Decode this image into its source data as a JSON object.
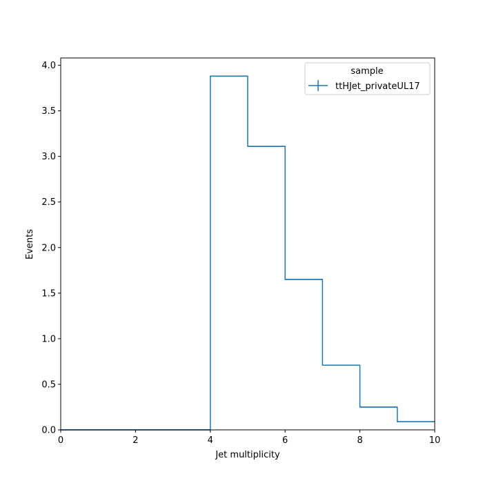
{
  "chart_data": {
    "type": "histogram-step",
    "xlabel": "Jet multiplicity",
    "ylabel": "Events",
    "xlim": [
      0,
      10
    ],
    "ylim": [
      0,
      4.08
    ],
    "x_ticks": [
      "0",
      "2",
      "4",
      "6",
      "8",
      "10"
    ],
    "y_ticks": [
      "0.0",
      "0.5",
      "1.0",
      "1.5",
      "2.0",
      "2.5",
      "3.0",
      "3.5",
      "4.0"
    ],
    "bin_edges": [
      0,
      1,
      2,
      3,
      4,
      5,
      6,
      7,
      8,
      9,
      10
    ],
    "series": [
      {
        "name": "ttHJet_privateUL17",
        "color": "#1f77b4",
        "values": [
          0,
          0,
          0,
          0,
          3.88,
          3.11,
          1.65,
          0.71,
          0.25,
          0.09
        ]
      }
    ],
    "legend": {
      "title": "sample",
      "position": "top-right"
    },
    "grid": false
  }
}
